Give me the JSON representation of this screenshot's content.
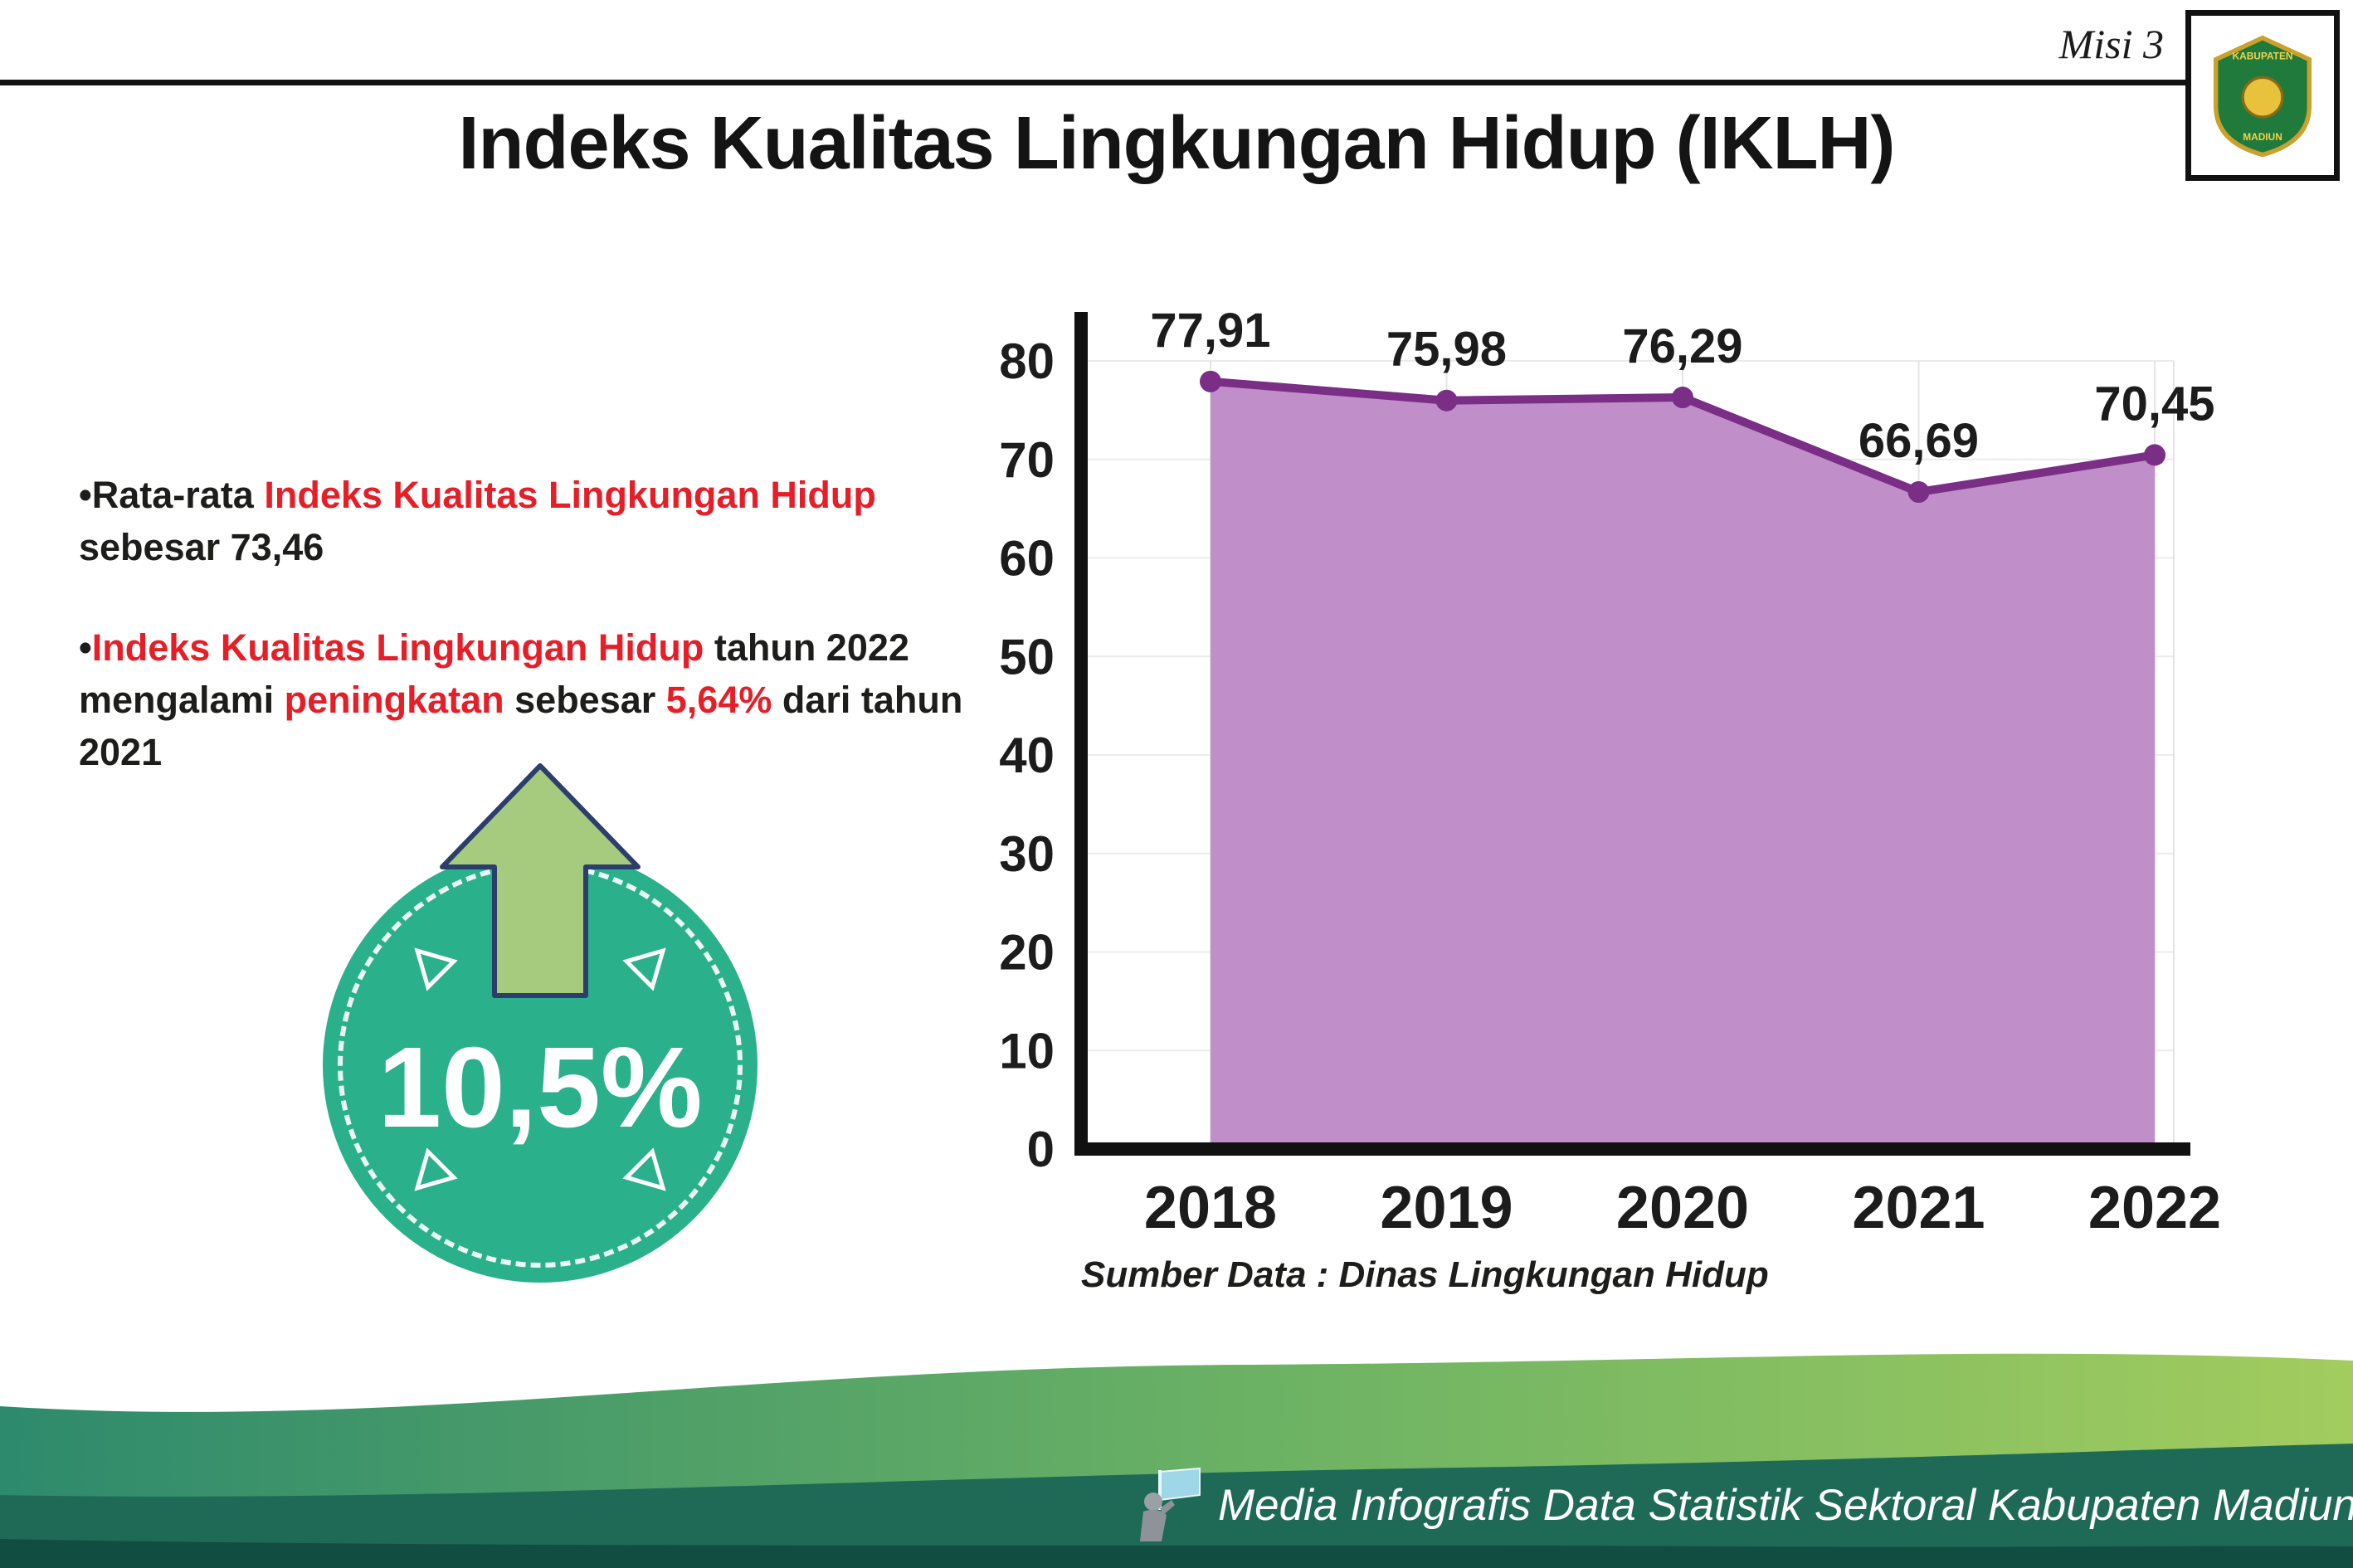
{
  "header": {
    "misi_label": "Misi 3"
  },
  "logo": {
    "top_text": "KABUPATEN",
    "bottom_text": "MADIUN"
  },
  "title": "Indeks Kualitas Lingkungan Hidup (IKLH)",
  "bullets": {
    "marker": "•",
    "b1": {
      "p1": "Rata-rata ",
      "p2": "Indeks Kualitas Lingkungan Hidup",
      "p3": " sebesar 73,46"
    },
    "b2": {
      "p1": "Indeks Kualitas Lingkungan Hidup",
      "p2": " tahun 2022 mengalami ",
      "p3": "peningkatan",
      "p4": " sebesar ",
      "p5": "5,64%",
      "p6": " dari tahun 2021"
    }
  },
  "badge": {
    "value": "10,5%"
  },
  "chart_data": {
    "type": "area",
    "title": "Indeks Kualitas Lingkungan Hidup (IKLH)",
    "categories": [
      "2018",
      "2019",
      "2020",
      "2021",
      "2022"
    ],
    "values": [
      77.91,
      75.98,
      76.29,
      66.69,
      70.45
    ],
    "value_labels": [
      "77,91",
      "75,98",
      "76,29",
      "66,69",
      "70,45"
    ],
    "ylim": [
      0,
      80
    ],
    "ytick_step": 10,
    "grid": true,
    "legend": "none",
    "fill_color": "#c08ec9",
    "line_color": "#7a2e86",
    "point_color": "#7a2e86",
    "axis_color": "#111111",
    "source_note": "Sumber Data : Dinas Lingkungan Hidup"
  },
  "colors": {
    "accent_teal": "#2bb08c",
    "arrow_green": "#a7cb7e",
    "arrow_outline": "#2c3e6b",
    "highlight_red": "#e61e28",
    "footer_dark_green": "#1e6a57",
    "footer_gradient_start": "#2e8a6d",
    "footer_gradient_end": "#a2cc5e"
  },
  "footer": {
    "text": "Media Infografis Data Statistik Sektoral Kabupaten Madiun |"
  }
}
